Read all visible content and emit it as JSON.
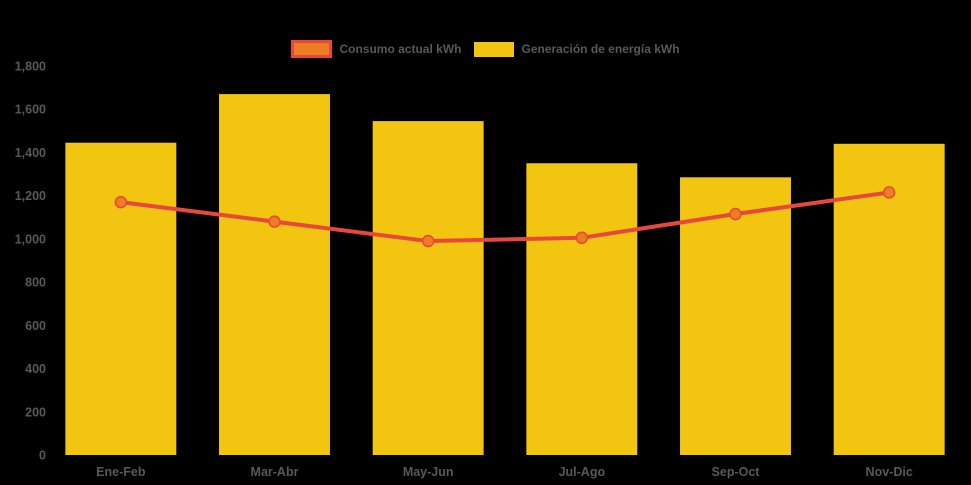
{
  "page": {
    "background": "#000000",
    "axis_text_color": "#58585A"
  },
  "legend": {
    "position": "top-center",
    "items": [
      {
        "label": "Consumo actual kWh",
        "swatch": "orange-rect-red-border"
      },
      {
        "label": "Generación de energía kWh",
        "swatch": "yellow-rect"
      }
    ]
  },
  "chart_data": {
    "type": "bar",
    "subtype": "bar-line-combo",
    "title": "",
    "xlabel": "",
    "ylabel": "",
    "categories": [
      "Ene-Feb",
      "Mar-Abr",
      "May-Jun",
      "Jul-Ago",
      "Sep-Oct",
      "Nov-Dic"
    ],
    "series": [
      {
        "name": "Consumo actual kWh",
        "type": "line",
        "values": [
          1170,
          1080,
          990,
          1005,
          1115,
          1215
        ],
        "color": "#E8483B",
        "marker_color": "#EB7D23",
        "marker": "circle"
      },
      {
        "name": "Generación de energía kWh",
        "type": "bar",
        "values": [
          1445,
          1670,
          1545,
          1350,
          1285,
          1440
        ],
        "color": "#F2C511"
      }
    ],
    "ylim": [
      0,
      1800
    ],
    "ytick_step": 200,
    "ytick_labels": [
      "0",
      "200",
      "400",
      "600",
      "800",
      "1,000",
      "1,200",
      "1,400",
      "1,600",
      "1,800"
    ],
    "grid": false,
    "legend_position": "top"
  }
}
